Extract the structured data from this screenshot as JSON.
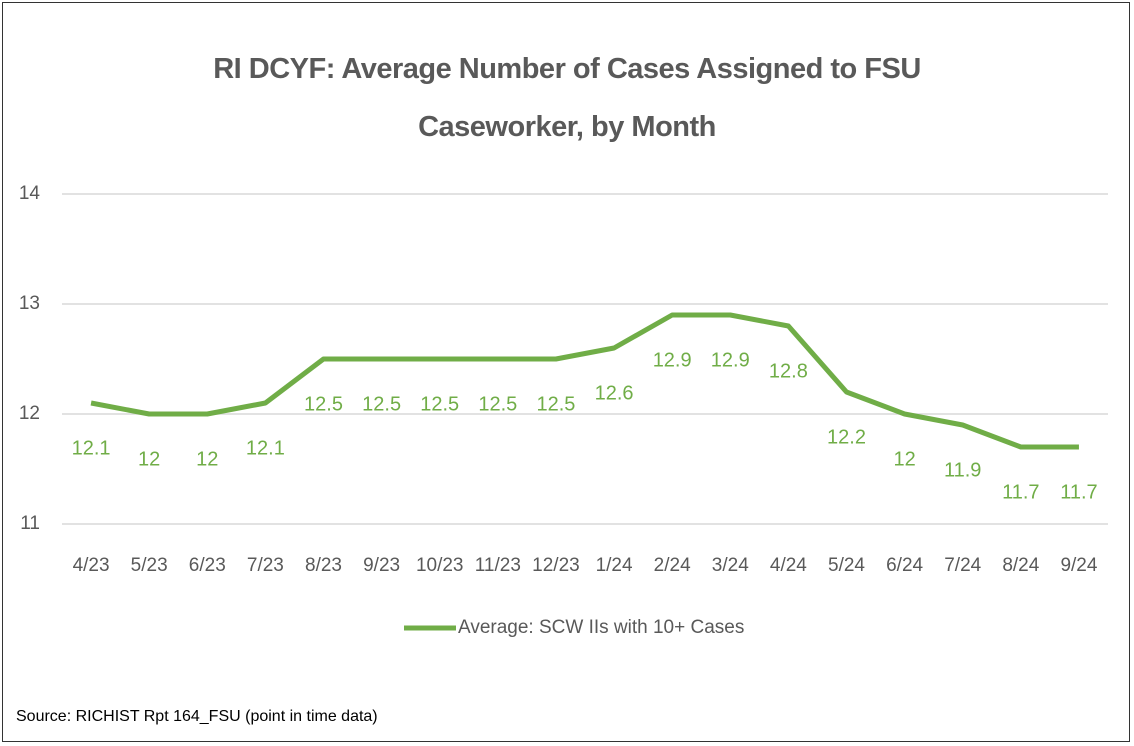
{
  "chart_data": {
    "type": "line",
    "title": "RI DCYF: Average Number of Cases Assigned to FSU Caseworker, by Month",
    "categories": [
      "4/23",
      "5/23",
      "6/23",
      "7/23",
      "8/23",
      "9/23",
      "10/23",
      "11/23",
      "12/23",
      "1/24",
      "2/24",
      "3/24",
      "4/24",
      "5/24",
      "6/24",
      "7/24",
      "8/24",
      "9/24"
    ],
    "series": [
      {
        "name": "Average: SCW IIs with 10+ Cases",
        "color": "#70ad47",
        "values": [
          12.1,
          12,
          12,
          12.1,
          12.5,
          12.5,
          12.5,
          12.5,
          12.5,
          12.6,
          12.9,
          12.9,
          12.8,
          12.2,
          12,
          11.9,
          11.7,
          11.7
        ]
      }
    ],
    "ylim": [
      11,
      14
    ],
    "yticks": [
      11,
      12,
      13,
      14
    ],
    "grid": true,
    "legend": "bottom",
    "source": "Source: RICHIST Rpt 164_FSU (point in time data)"
  }
}
